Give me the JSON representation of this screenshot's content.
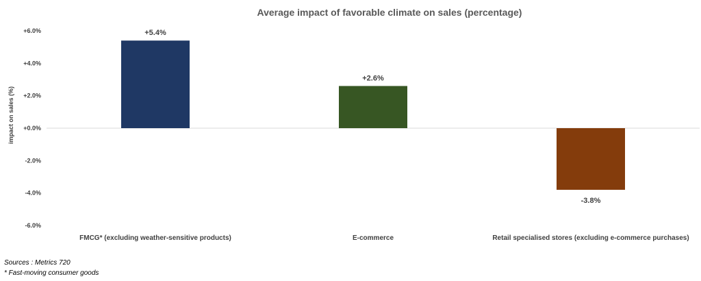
{
  "chart_data": {
    "type": "bar",
    "title": "Average impact of favorable climate on sales (percentage)",
    "ylabel": "impact on sales (%)",
    "xlabel": "",
    "categories": [
      "FMCG* (excluding weather-sensitive products)",
      "E-commerce",
      "Retail specialised stores (excluding e-commerce purchases)"
    ],
    "values": [
      5.4,
      2.6,
      -3.8
    ],
    "data_labels": [
      "+5.4%",
      "+2.6%",
      "-3.8%"
    ],
    "bar_colors": [
      "#1f3864",
      "#375623",
      "#843c0c"
    ],
    "ylim": [
      -6,
      6
    ],
    "yticks": [
      6,
      4,
      2,
      0,
      -2,
      -4,
      -6
    ],
    "ytick_labels": [
      "+6.0%",
      "+4.0%",
      "+2.0%",
      "+0.0%",
      "-2.0%",
      "-4.0%",
      "-6.0%"
    ],
    "grid": false,
    "legend": "none",
    "zero_line_color": "#d9d9d9"
  },
  "footnotes": {
    "source": "Sources : Metrics 720",
    "note": "* Fast-moving consumer goods"
  }
}
